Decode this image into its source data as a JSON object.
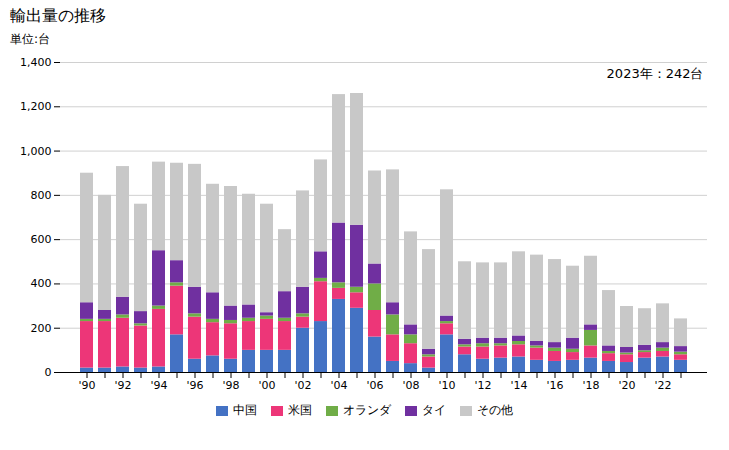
{
  "chart_data": {
    "type": "bar",
    "stacked": true,
    "title": "輸出量の推移",
    "ylabel": "単位:台",
    "annotation": "2023年：242台",
    "categories": [
      "'90",
      null,
      "'92",
      null,
      "'94",
      null,
      "'96",
      null,
      "'98",
      null,
      "'00",
      null,
      "'02",
      null,
      "'04",
      null,
      "'06",
      null,
      "'08",
      null,
      "'10",
      null,
      "'12",
      null,
      "'14",
      null,
      "'16",
      null,
      "'18",
      null,
      "'20",
      null,
      "'22",
      null
    ],
    "series": [
      {
        "name": "中国",
        "color": "#4472c4",
        "values": [
          20,
          20,
          25,
          20,
          25,
          170,
          60,
          75,
          60,
          100,
          100,
          100,
          200,
          230,
          330,
          290,
          160,
          50,
          40,
          20,
          170,
          80,
          60,
          65,
          70,
          55,
          50,
          55,
          65,
          50,
          45,
          65,
          70,
          55
        ]
      },
      {
        "name": "米国",
        "color": "#ed3678",
        "values": [
          210,
          210,
          220,
          190,
          260,
          220,
          190,
          150,
          160,
          130,
          140,
          130,
          50,
          180,
          50,
          70,
          120,
          120,
          90,
          50,
          50,
          35,
          55,
          55,
          55,
          55,
          45,
          35,
          55,
          35,
          35,
          25,
          25,
          25
        ]
      },
      {
        "name": "オランダ",
        "color": "#70ad47",
        "values": [
          10,
          10,
          15,
          10,
          15,
          15,
          15,
          15,
          15,
          15,
          15,
          15,
          15,
          15,
          25,
          25,
          120,
          90,
          40,
          10,
          10,
          10,
          15,
          10,
          15,
          10,
          15,
          15,
          70,
          10,
          8,
          8,
          15,
          12
        ]
      },
      {
        "name": "タイ",
        "color": "#7030a0",
        "values": [
          75,
          40,
          80,
          55,
          250,
          100,
          120,
          120,
          65,
          60,
          15,
          120,
          120,
          120,
          270,
          280,
          90,
          55,
          45,
          25,
          25,
          25,
          25,
          25,
          25,
          20,
          25,
          50,
          25,
          25,
          25,
          25,
          25,
          25
        ]
      },
      {
        "name": "その他",
        "color": "#c8c8c8",
        "values": [
          585,
          520,
          590,
          485,
          400,
          440,
          555,
          490,
          540,
          500,
          490,
          280,
          435,
          415,
          580,
          595,
          420,
          600,
          420,
          450,
          570,
          350,
          340,
          340,
          380,
          390,
          375,
          325,
          310,
          250,
          185,
          165,
          175,
          125
        ]
      }
    ],
    "ylim": [
      0,
      1400
    ],
    "yticks": [
      0,
      200,
      400,
      600,
      800,
      {
        "value": 1000,
        "label": "1,000"
      },
      {
        "value": 1200,
        "label": "1,200"
      },
      {
        "value": 1400,
        "label": "1,400"
      }
    ],
    "grid": true,
    "legend": "bottom"
  }
}
